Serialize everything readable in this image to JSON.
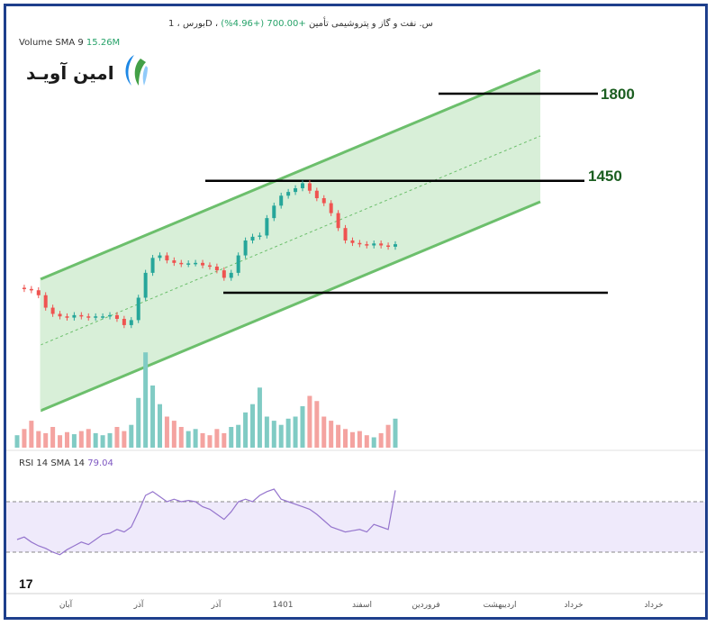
{
  "header": {
    "title": "بورس ، 1D ، س. نفت و گاز و پتروشیمی تأمین",
    "change": "+700.00 (+4.96%)",
    "volume_label": "Volume SMA 9",
    "volume_value": "15.26M",
    "rsi_label": "RSI 14 SMA 14",
    "rsi_value": "79.04"
  },
  "logo": {
    "text": "امین آویـد",
    "icon": "amin-avid-logo-icon"
  },
  "tv_logo": "17",
  "colors": {
    "up": "#26a69a",
    "down": "#ef5350",
    "channel_fill": "#d8efd8",
    "channel_line": "#6cbf6c",
    "rsi_line": "#9575cd",
    "rsi_band": "#efeafb",
    "level_line": "#000000",
    "frame": "#1e3f8c"
  },
  "chart_data": {
    "type": "candlestick",
    "levels": [
      {
        "label": "1800",
        "value": 1800
      },
      {
        "label": "1450",
        "value": 1450
      },
      {
        "label": "",
        "value": 1000
      }
    ],
    "x_tick_labels": [
      "آبان",
      "آذر",
      "آذر",
      "1401",
      "اسفند",
      "فروردین",
      "اردیبهشت",
      "خرداد",
      "خرداد"
    ],
    "price_path": [
      1020,
      1015,
      1010,
      990,
      940,
      915,
      905,
      900,
      910,
      905,
      900,
      905,
      905,
      910,
      895,
      870,
      890,
      980,
      1080,
      1140,
      1150,
      1130,
      1120,
      1115,
      1118,
      1120,
      1110,
      1105,
      1090,
      1060,
      1080,
      1150,
      1210,
      1225,
      1230,
      1300,
      1350,
      1390,
      1405,
      1420,
      1440,
      1410,
      1380,
      1360,
      1320,
      1260,
      1210,
      1200,
      1195,
      1190,
      1198,
      1190,
      1185,
      1195
    ],
    "volume_path": [
      12,
      18,
      26,
      16,
      14,
      20,
      12,
      15,
      13,
      16,
      18,
      14,
      12,
      14,
      20,
      16,
      22,
      48,
      92,
      60,
      42,
      30,
      26,
      20,
      16,
      18,
      14,
      12,
      18,
      14,
      20,
      22,
      34,
      42,
      58,
      30,
      26,
      22,
      28,
      30,
      40,
      50,
      45,
      30,
      26,
      22,
      18,
      15,
      16,
      12,
      10,
      14,
      22,
      28
    ],
    "rsi_path": [
      40,
      42,
      38,
      35,
      33,
      30,
      28,
      32,
      35,
      38,
      36,
      40,
      44,
      45,
      48,
      46,
      50,
      62,
      75,
      78,
      74,
      70,
      72,
      70,
      71,
      70,
      66,
      64,
      60,
      56,
      62,
      70,
      72,
      70,
      75,
      78,
      80,
      72,
      70,
      68,
      66,
      64,
      60,
      55,
      50,
      48,
      46,
      47,
      48,
      46,
      52,
      50,
      48,
      79
    ],
    "rsi_band": [
      30,
      70
    ]
  }
}
